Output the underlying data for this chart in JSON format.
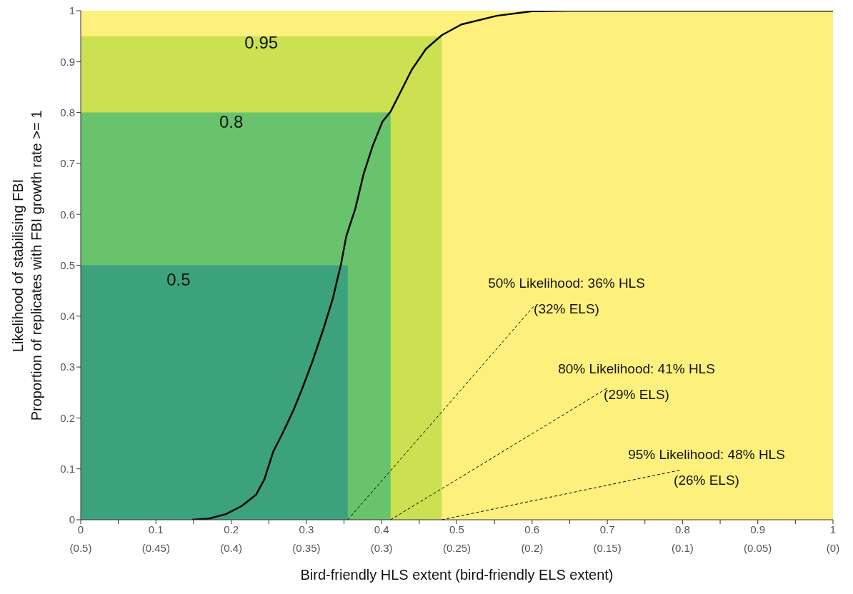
{
  "chart_data": {
    "type": "line",
    "xlabel": "Bird-friendly HLS extent (bird-friendly ELS extent)",
    "ylabel": "Likelihood of stabilising FBI\nProportion of replicates with FBI growth rate >= 1",
    "series": [
      {
        "type": "area",
        "color": "#cbe151",
        "x": [
          0,
          0.48
        ],
        "values": [
          0.95,
          0.95
        ]
      },
      {
        "type": "area",
        "color": "#68c36c",
        "x": [
          0,
          0.412
        ],
        "values": [
          0.8,
          0.8
        ]
      },
      {
        "type": "area",
        "color": "#3ca27d",
        "x": [
          0,
          0.355
        ],
        "values": [
          0.5,
          0.5
        ]
      },
      {
        "color": "#000000",
        "x": [
          0.148,
          0.17,
          0.193,
          0.214,
          0.233,
          0.244,
          0.256,
          0.27,
          0.283,
          0.294,
          0.308,
          0.322,
          0.335,
          0.346,
          0.353,
          0.365,
          0.376,
          0.388,
          0.401,
          0.412,
          0.426,
          0.44,
          0.459,
          0.48,
          0.506,
          0.553,
          0.6,
          0.648,
          1
        ],
        "values": [
          0,
          0.002,
          0.011,
          0.027,
          0.049,
          0.079,
          0.134,
          0.175,
          0.216,
          0.256,
          0.311,
          0.372,
          0.434,
          0.502,
          0.557,
          0.611,
          0.679,
          0.734,
          0.782,
          0.802,
          0.843,
          0.884,
          0.925,
          0.952,
          0.973,
          0.99,
          0.999,
          1,
          1
        ]
      }
    ],
    "annotations": [
      "0.95",
      "0.8",
      "0.5",
      {
        "text": "50% Likelihood: 36% HLS\n(32% ELS)",
        "x": 0.355,
        "y": 0
      },
      {
        "text": "80% Likelihood: 41% HLS\n(29% ELS)",
        "x": 0.412,
        "y": 0
      },
      {
        "text": "95% Likelihood: 48% HLS\n(26% ELS)",
        "x": 0.48,
        "y": 0
      }
    ],
    "xlim": [
      0,
      1
    ],
    "ylim": [
      0,
      1
    ],
    "xticks": [
      0,
      {
        "value": 0.05,
        "label": null
      },
      0.1,
      {
        "value": 0.15,
        "label": null
      },
      0.2,
      {
        "value": 0.25,
        "label": null
      },
      0.3,
      {
        "value": 0.35,
        "label": null
      },
      0.4,
      {
        "value": 0.45,
        "label": null
      },
      0.5,
      {
        "value": 0.55,
        "label": null
      },
      0.6,
      {
        "value": 0.65,
        "label": null
      },
      0.7,
      {
        "value": 0.75,
        "label": null
      },
      0.8,
      {
        "value": 0.85,
        "label": null
      },
      0.9,
      {
        "value": 0.95,
        "label": null
      },
      1
    ],
    "x2lim": [
      0.5,
      0
    ],
    "x2ticks": [
      {
        "value": 0.5,
        "label": "(0.5)"
      },
      {
        "value": 0.45,
        "label": "(0.45)"
      },
      {
        "value": 0.4,
        "label": "(0.4)"
      },
      {
        "value": 0.35,
        "label": "(0.35)"
      },
      {
        "value": 0.3,
        "label": "(0.3)"
      },
      {
        "value": 0.25,
        "label": "(0.25)"
      },
      {
        "value": 0.2,
        "label": "(0.2)"
      },
      {
        "value": 0.15,
        "label": "(0.15)"
      },
      {
        "value": 0.1,
        "label": "(0.1)"
      },
      {
        "value": 0.05,
        "label": "(0.05)"
      },
      {
        "value": 0,
        "label": "(0)"
      }
    ],
    "yticks": [
      0,
      0.1,
      0.2,
      0.3,
      0.4,
      0.5,
      0.6,
      0.7,
      0.8,
      0.9,
      1
    ],
    "grid": false,
    "legend": false
  }
}
